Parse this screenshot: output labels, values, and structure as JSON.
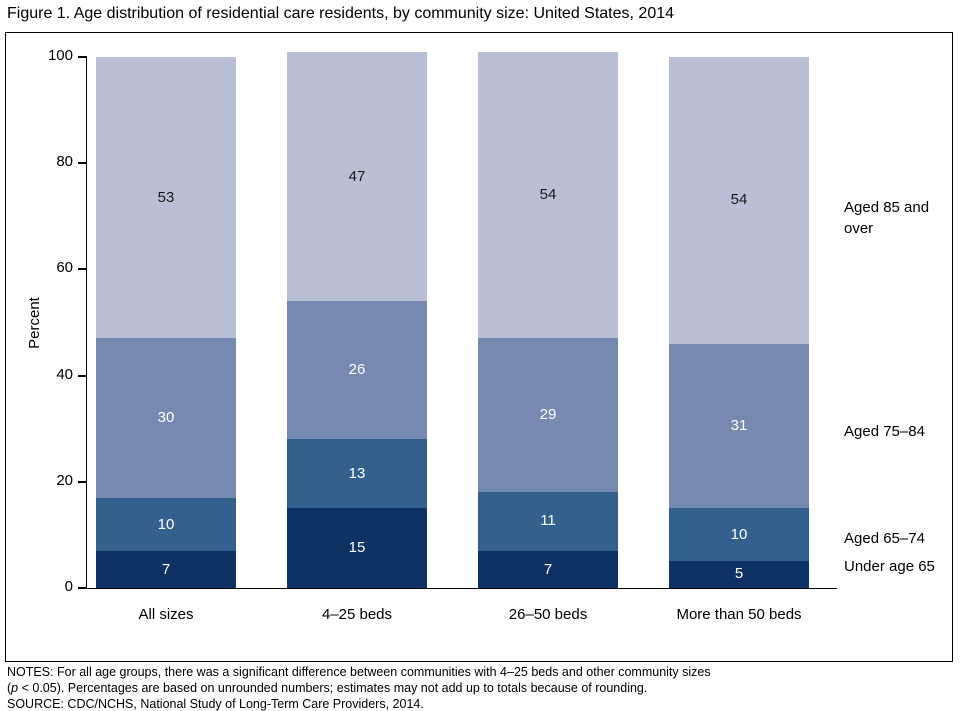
{
  "figure_title": "Figure 1. Age distribution of residential care residents, by community size: United States, 2014",
  "chart_data": {
    "type": "bar",
    "stacked": true,
    "title": "Figure 1. Age distribution of residential care residents, by community size: United States, 2014",
    "xlabel": "",
    "ylabel": "Percent",
    "ylim": [
      0,
      100
    ],
    "yticks": [
      0,
      20,
      40,
      60,
      80,
      100
    ],
    "grid": false,
    "legend_position": "right",
    "categories": [
      "All sizes",
      "4–25 beds",
      "26–50 beds",
      "More than 50 beds"
    ],
    "series": [
      {
        "name": "Under age 65",
        "color": "#0e3263",
        "label_color": "#ffffff",
        "values": [
          7,
          15,
          7,
          5
        ]
      },
      {
        "name": "Aged 65–74",
        "color": "#33608c",
        "label_color": "#ffffff",
        "values": [
          10,
          13,
          11,
          10
        ]
      },
      {
        "name": "Aged 75–84",
        "color": "#7689b0",
        "label_color": "#ffffff",
        "values": [
          30,
          26,
          29,
          31
        ]
      },
      {
        "name": "Aged 85 and over",
        "color": "#b9c0d6",
        "label_color": "#1a1a1a",
        "values": [
          53,
          47,
          54,
          54
        ]
      }
    ]
  },
  "notes": {
    "line1": "NOTES: For all age groups, there was a significant difference between communities with 4–25 beds and other community sizes",
    "line2_pre": "(",
    "line2_italic": "p",
    "line2_post": " < 0.05). Percentages are based on unrounded numbers; estimates may not add up to totals because of rounding.",
    "line3": "SOURCE: CDC/NCHS, National Study of Long-Term Care Providers, 2014."
  }
}
